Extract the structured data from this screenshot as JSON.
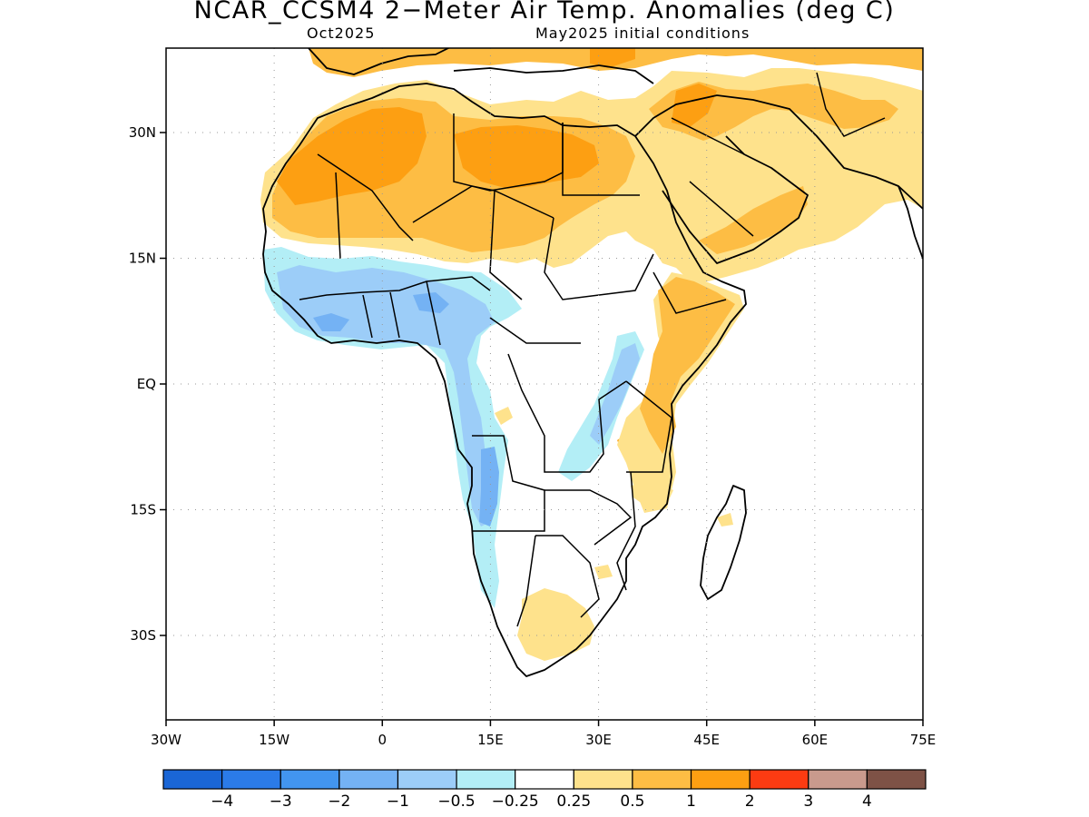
{
  "title": "NCAR_CCSM4 2−Meter Air Temp. Anomalies (deg C)",
  "subtitle_left": "Oct2025",
  "subtitle_right": "May2025 initial conditions",
  "lat_labels": [
    {
      "lat": 30,
      "label": "30N"
    },
    {
      "lat": 15,
      "label": "15N"
    },
    {
      "lat": 0,
      "label": "EQ"
    },
    {
      "lat": -15,
      "label": "15S"
    },
    {
      "lat": -30,
      "label": "30S"
    }
  ],
  "lon_labels": [
    {
      "lon": -30,
      "label": "30W"
    },
    {
      "lon": -15,
      "label": "15W"
    },
    {
      "lon": 0,
      "label": "0"
    },
    {
      "lon": 15,
      "label": "15E"
    },
    {
      "lon": 30,
      "label": "30E"
    },
    {
      "lon": 45,
      "label": "45E"
    },
    {
      "lon": 60,
      "label": "60E"
    },
    {
      "lon": 75,
      "label": "75E"
    }
  ],
  "colorbar": {
    "colors": [
      "#1a66d6",
      "#2b7be8",
      "#4295ef",
      "#74b2f4",
      "#9ccdf8",
      "#b3eef6",
      "#ffffff",
      "#fee28c",
      "#fdbd44",
      "#fd9f12",
      "#fc3b12",
      "#c99a8d",
      "#7e5246"
    ],
    "labels": [
      "−4",
      "−3",
      "−2",
      "−1",
      "−0.5",
      "−0.25",
      "0.25",
      "0.5",
      "1",
      "2",
      "3",
      "4"
    ]
  },
  "legend_colors": {
    "very_light_blue": "#b3eef6",
    "light_blue": "#9ccdf8",
    "medium_blue": "#74b2f4",
    "light_yellow": "#fee28c",
    "light_orange": "#fdbd44",
    "orange": "#fd9f12"
  }
}
